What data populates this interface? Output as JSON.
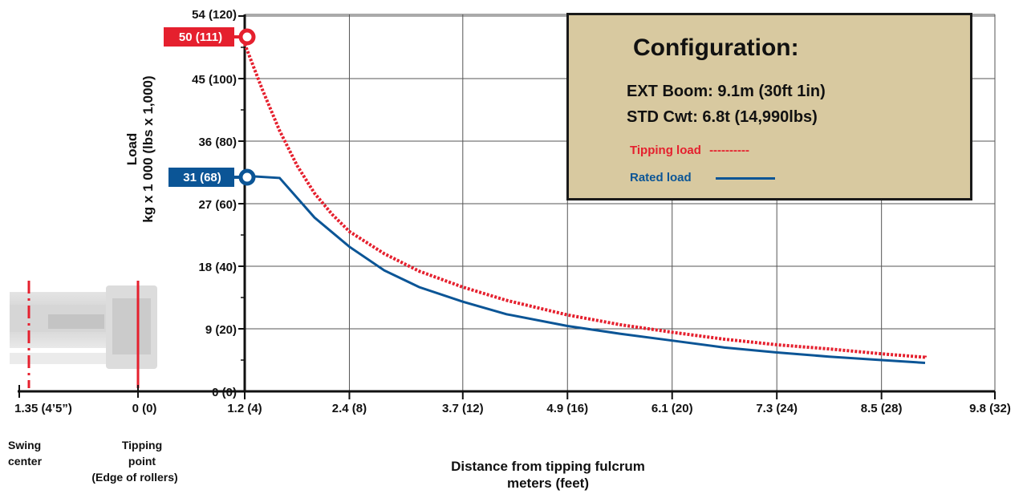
{
  "config": {
    "title": "Configuration:",
    "boom": "EXT Boom: 9.1m (30ft 1in)",
    "counterweight": "STD Cwt: 6.8t (14,990lbs)"
  },
  "legend": {
    "tipping": {
      "label": "Tipping load",
      "marker": "----------",
      "color": "#e5202e"
    },
    "rated": {
      "label": "Rated load",
      "color": "#0b5596"
    }
  },
  "markers": {
    "tipping_max": "50 (111)",
    "rated_max": "31 (68)"
  },
  "machine_labels": {
    "swing_center_x": "1.35 (4’5”)",
    "tipping_point_x": "0 (0)",
    "swing_center": [
      "Swing",
      "center"
    ],
    "tipping_point": [
      "Tipping",
      "point",
      "(Edge of rollers)"
    ]
  },
  "chart_data": {
    "type": "line",
    "title": "",
    "ylabel": [
      "Load",
      "kg x 1 000 (lbs x 1,000)"
    ],
    "xlabel": [
      "Distance from tipping fulcrum",
      "meters (feet)"
    ],
    "xlim": [
      1.2,
      9.8
    ],
    "ylim": [
      0,
      54
    ],
    "grid": true,
    "x_ticks": [
      {
        "value": 1.2,
        "label": "1.2 (4)"
      },
      {
        "value": 2.4,
        "label": "2.4 (8)"
      },
      {
        "value": 3.7,
        "label": "3.7 (12)"
      },
      {
        "value": 4.9,
        "label": "4.9 (16)"
      },
      {
        "value": 6.1,
        "label": "6.1 (20)"
      },
      {
        "value": 7.3,
        "label": "7.3 (24)"
      },
      {
        "value": 8.5,
        "label": "8.5 (28)"
      },
      {
        "value": 9.8,
        "label": "9.8 (32)"
      }
    ],
    "y_ticks": [
      {
        "value": 0,
        "label": "0 (0)"
      },
      {
        "value": 9,
        "label": "9 (20)"
      },
      {
        "value": 18,
        "label": "18 (40)"
      },
      {
        "value": 27,
        "label": "27 (60)"
      },
      {
        "value": 36,
        "label": "36 (80)"
      },
      {
        "value": 45,
        "label": "45 (100)"
      },
      {
        "value": 54,
        "label": "54 (120)"
      }
    ],
    "series": [
      {
        "name": "Tipping load",
        "style": "dotted",
        "color": "#e5202e",
        "x": [
          1.2,
          1.4,
          1.6,
          1.8,
          2.0,
          2.2,
          2.4,
          2.8,
          3.2,
          3.7,
          4.2,
          4.9,
          5.5,
          6.1,
          6.7,
          7.3,
          7.9,
          8.5,
          9.0,
          9.0
        ],
        "y": [
          50.0,
          43.5,
          37.5,
          32.5,
          28.5,
          25.5,
          23.0,
          19.8,
          17.3,
          15.0,
          13.1,
          11.0,
          9.6,
          8.5,
          7.5,
          6.7,
          6.1,
          5.4,
          4.9,
          4.8
        ]
      },
      {
        "name": "Rated load",
        "style": "solid",
        "color": "#0b5596",
        "x": [
          1.2,
          1.6,
          2.0,
          2.4,
          2.8,
          3.2,
          3.7,
          4.2,
          4.9,
          5.5,
          6.1,
          6.7,
          7.3,
          7.9,
          8.5,
          9.0
        ],
        "y": [
          31.0,
          30.7,
          25.0,
          20.8,
          17.4,
          15.0,
          12.9,
          11.1,
          9.4,
          8.3,
          7.3,
          6.3,
          5.6,
          5.0,
          4.5,
          4.1
        ]
      }
    ]
  }
}
